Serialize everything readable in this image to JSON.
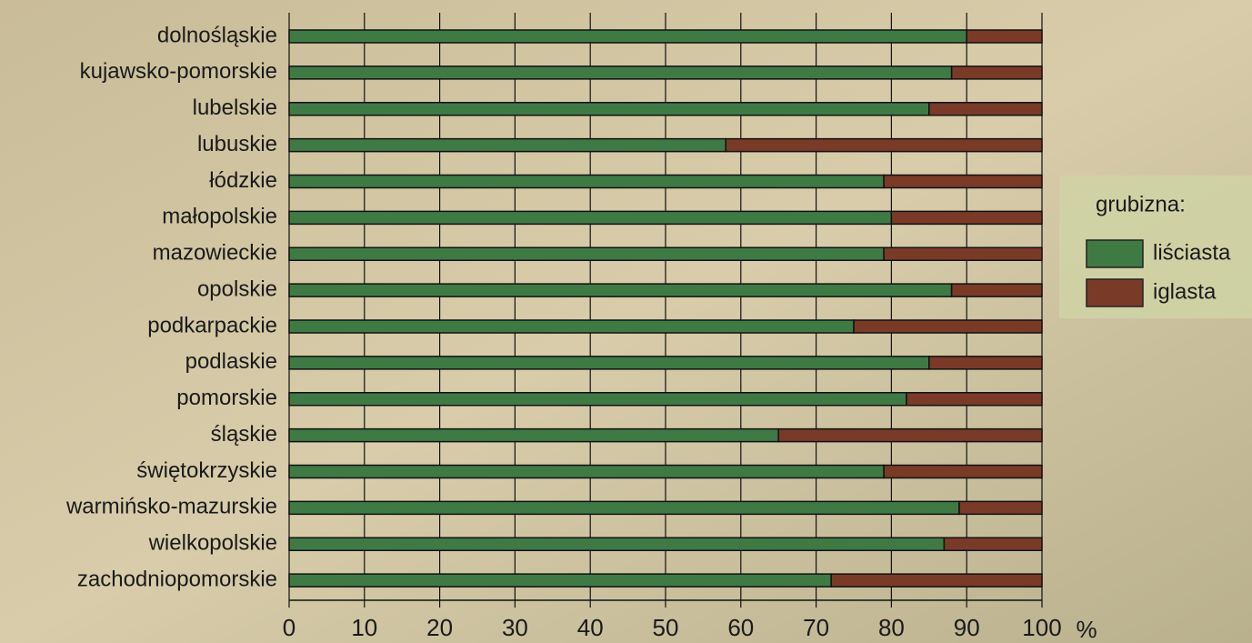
{
  "chart_data": {
    "type": "stacked-bar-horizontal",
    "categories": [
      "dolnośląskie",
      "kujawsko-pomorskie",
      "lubelskie",
      "lubuskie",
      "łódzkie",
      "małopolskie",
      "mazowieckie",
      "opolskie",
      "podkarpackie",
      "podlaskie",
      "pomorskie",
      "śląskie",
      "świętokrzyskie",
      "warmińsko-mazurskie",
      "wielkopolskie",
      "zachodniopomorskie"
    ],
    "series": [
      {
        "name": "liściasta",
        "color": "#3f7a45",
        "values": [
          90,
          88,
          85,
          58,
          79,
          80,
          79,
          88,
          75,
          85,
          82,
          65,
          79,
          89,
          87,
          72
        ]
      },
      {
        "name": "iglasta",
        "color": "#7a3a28",
        "values": [
          10,
          12,
          15,
          42,
          21,
          20,
          21,
          12,
          25,
          15,
          18,
          35,
          21,
          11,
          13,
          28
        ]
      }
    ],
    "xlim": [
      0,
      100
    ],
    "xticks": [
      0,
      10,
      20,
      30,
      40,
      50,
      60,
      70,
      80,
      90,
      100
    ],
    "x_axis_label": "%",
    "legend_title": "grubizna:",
    "legend": "right",
    "grid": true
  }
}
